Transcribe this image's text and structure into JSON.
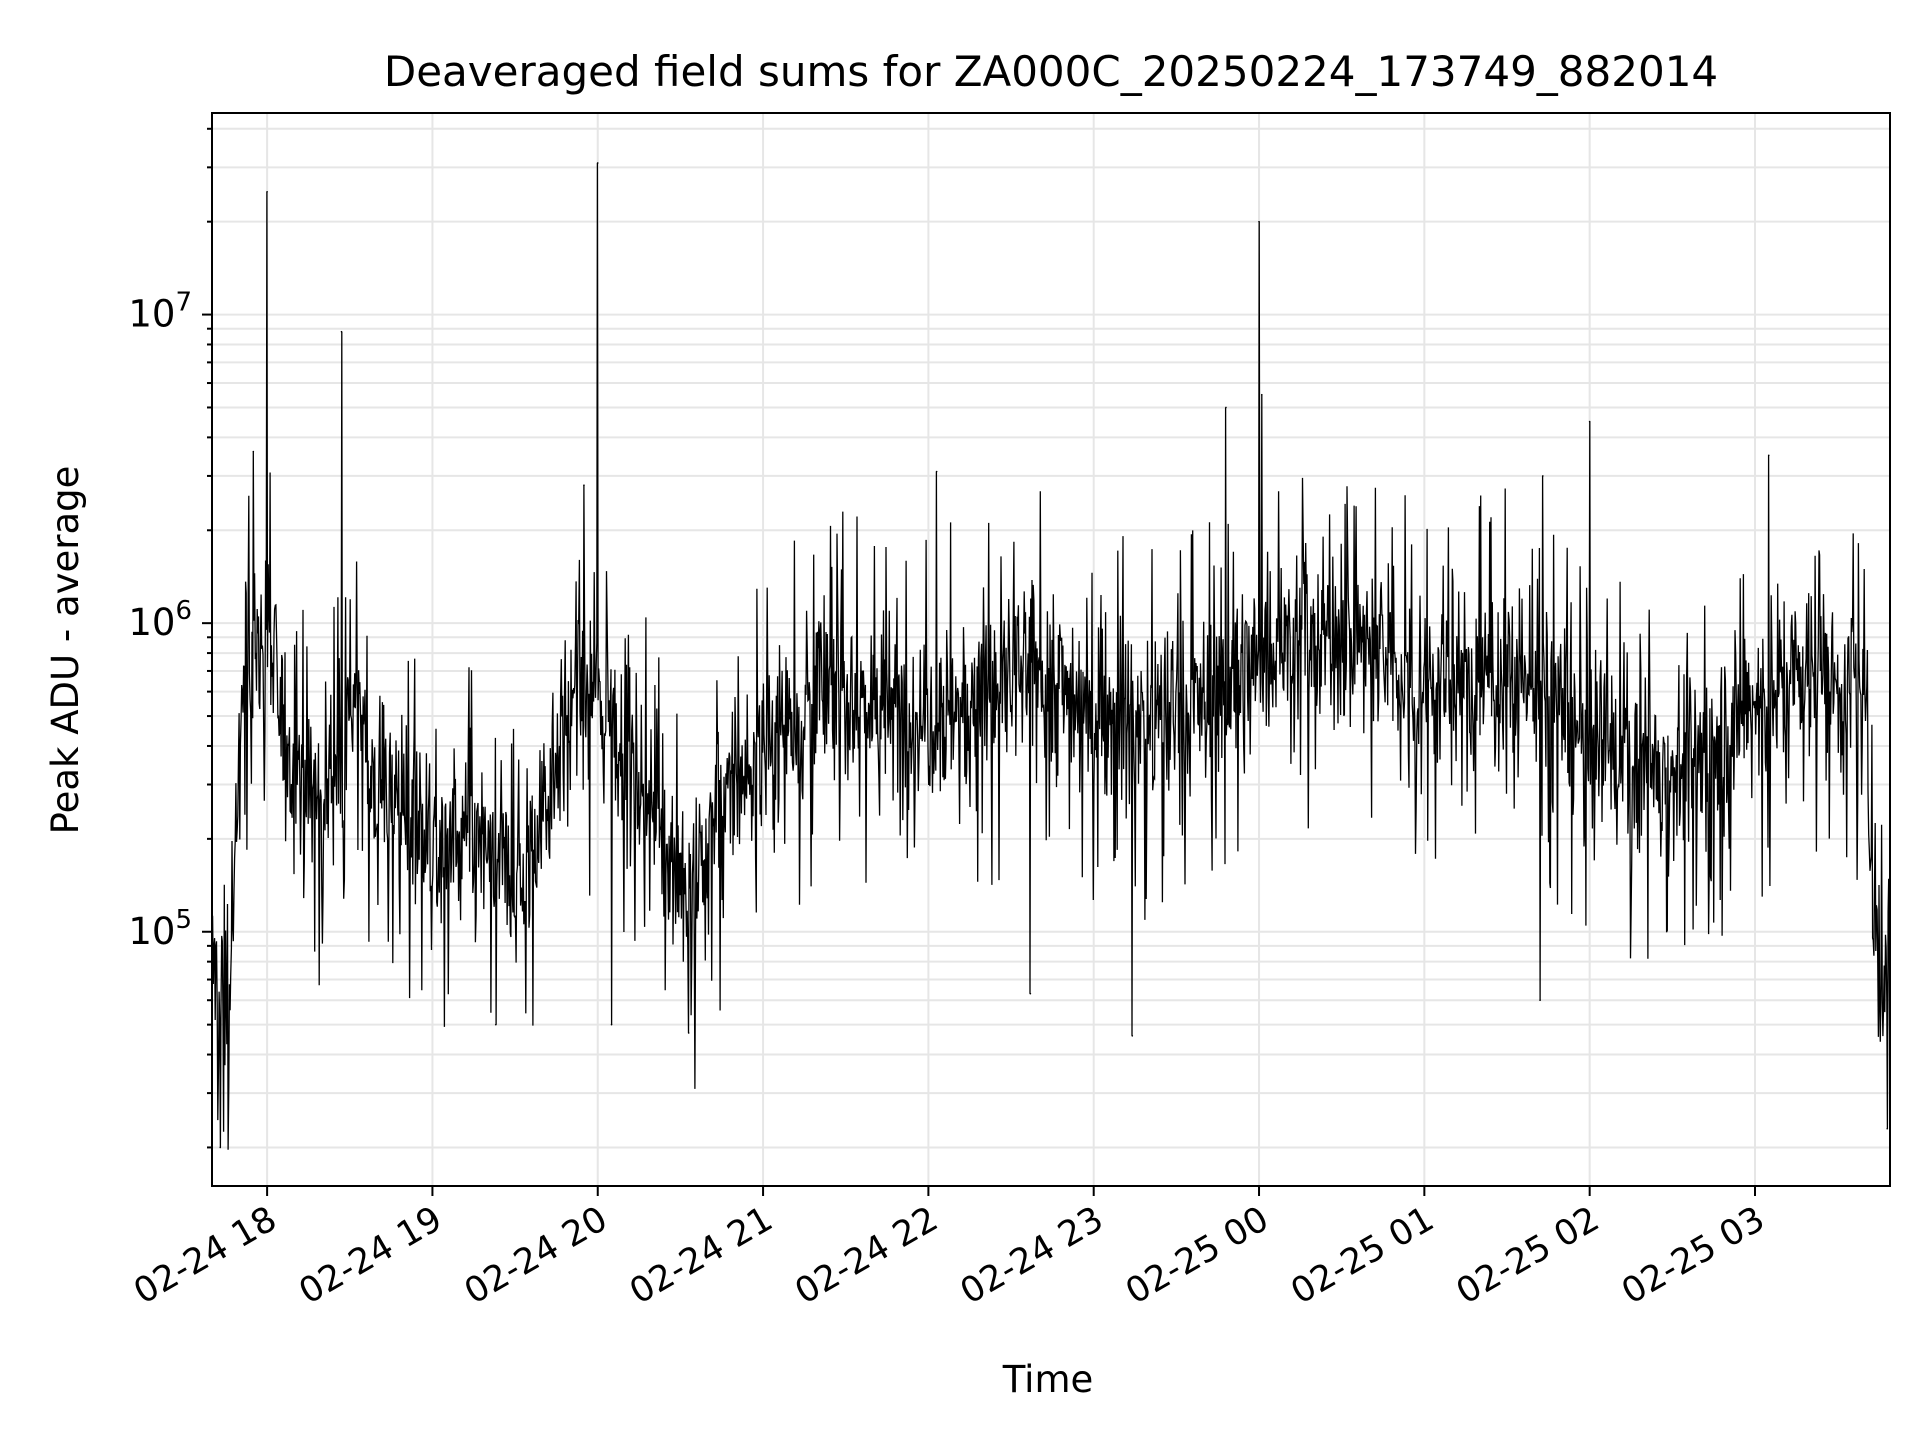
{
  "chart_data": {
    "type": "line",
    "title": "Deaveraged field sums for ZA000C_20250224_173749_882014",
    "xlabel": "Time",
    "ylabel": "Peak ADU - average",
    "yscale": "log",
    "grid": true,
    "legend": "none",
    "xlim": [
      "2025-02-24 17:40",
      "2025-02-25 03:49"
    ],
    "ylim": [
      15000,
      45000000
    ],
    "x_ticks": [
      "02-24 18",
      "02-24 19",
      "02-24 20",
      "02-24 21",
      "02-24 22",
      "02-24 23",
      "02-25 00",
      "02-25 01",
      "02-25 02",
      "02-25 03"
    ],
    "y_ticks": [
      {
        "base": "10",
        "exp": "5"
      },
      {
        "base": "10",
        "exp": "6"
      },
      {
        "base": "10",
        "exp": "7"
      }
    ],
    "colors": {
      "line": "#000000",
      "grid": "#e6e6e6"
    },
    "series": [
      {
        "x": [
          "2025-02-24 17:40",
          "2025-02-24 17:43",
          "2025-02-24 17:47",
          "2025-02-24 17:50",
          "2025-02-24 17:53",
          "2025-02-24 17:56",
          "2025-02-24 17:59",
          "2025-02-24 18:00",
          "2025-02-24 18:02",
          "2025-02-24 18:05",
          "2025-02-24 18:08",
          "2025-02-24 18:11",
          "2025-02-24 18:14",
          "2025-02-24 18:18",
          "2025-02-24 18:21",
          "2025-02-24 18:24",
          "2025-02-24 18:27",
          "2025-02-24 18:30",
          "2025-02-24 18:33",
          "2025-02-24 18:37",
          "2025-02-24 18:40",
          "2025-02-24 18:43",
          "2025-02-24 18:46",
          "2025-02-24 18:50",
          "2025-02-24 18:55",
          "2025-02-24 19:00",
          "2025-02-24 19:05",
          "2025-02-24 19:10",
          "2025-02-24 19:15",
          "2025-02-24 19:20",
          "2025-02-24 19:25",
          "2025-02-24 19:30",
          "2025-02-24 19:35",
          "2025-02-24 19:40",
          "2025-02-24 19:45",
          "2025-02-24 19:50",
          "2025-02-24 19:55",
          "2025-02-24 20:00",
          "2025-02-24 20:05",
          "2025-02-24 20:10",
          "2025-02-24 20:15",
          "2025-02-24 20:20",
          "2025-02-24 20:25",
          "2025-02-24 20:30",
          "2025-02-24 20:35",
          "2025-02-24 20:40",
          "2025-02-24 20:45",
          "2025-02-24 20:50",
          "2025-02-24 20:55",
          "2025-02-24 21:00",
          "2025-02-24 21:10",
          "2025-02-24 21:20",
          "2025-02-24 21:30",
          "2025-02-24 21:40",
          "2025-02-24 21:50",
          "2025-02-24 22:00",
          "2025-02-24 22:05",
          "2025-02-24 22:10",
          "2025-02-24 22:20",
          "2025-02-24 22:30",
          "2025-02-24 22:40",
          "2025-02-24 22:50",
          "2025-02-24 23:00",
          "2025-02-24 23:10",
          "2025-02-24 23:20",
          "2025-02-24 23:30",
          "2025-02-24 23:40",
          "2025-02-24 23:50",
          "2025-02-25 00:00",
          "2025-02-25 00:10",
          "2025-02-25 00:20",
          "2025-02-25 00:30",
          "2025-02-25 00:40",
          "2025-02-25 00:50",
          "2025-02-25 01:00",
          "2025-02-25 01:10",
          "2025-02-25 01:20",
          "2025-02-25 01:30",
          "2025-02-25 01:40",
          "2025-02-25 01:50",
          "2025-02-25 02:00",
          "2025-02-25 02:10",
          "2025-02-25 02:20",
          "2025-02-25 02:30",
          "2025-02-25 02:40",
          "2025-02-25 02:50",
          "2025-02-25 03:00",
          "2025-02-25 03:05",
          "2025-02-25 03:10",
          "2025-02-25 03:15",
          "2025-02-25 03:20",
          "2025-02-25 03:25",
          "2025-02-25 03:30",
          "2025-02-25 03:35",
          "2025-02-25 03:40",
          "2025-02-25 03:43",
          "2025-02-25 03:46",
          "2025-02-25 03:48"
        ],
        "baseline": [
          80000,
          60000,
          70000,
          400000,
          700000,
          800000,
          900000,
          1000000,
          700000,
          500000,
          400000,
          350000,
          300000,
          280000,
          300000,
          350000,
          400000,
          600000,
          450000,
          350000,
          300000,
          300000,
          280000,
          260000,
          230000,
          200000,
          180000,
          200000,
          190000,
          180000,
          150000,
          140000,
          180000,
          250000,
          400000,
          500000,
          550000,
          550000,
          500000,
          400000,
          300000,
          260000,
          200000,
          150000,
          120000,
          200000,
          250000,
          300000,
          330000,
          400000,
          500000,
          600000,
          600000,
          550000,
          500000,
          520000,
          540000,
          550000,
          600000,
          650000,
          700000,
          600000,
          550000,
          500000,
          480000,
          500000,
          550000,
          600000,
          800000,
          900000,
          950000,
          900000,
          850000,
          700000,
          650000,
          600000,
          650000,
          700000,
          650000,
          500000,
          400000,
          380000,
          350000,
          330000,
          350000,
          450000,
          550000,
          600000,
          650000,
          700000,
          750000,
          700000,
          650000,
          600000,
          500000,
          150000,
          60000,
          100000
        ],
        "spikes": [
          {
            "x": "2025-02-24 18:00",
            "y": 25000000
          },
          {
            "x": "2025-02-24 18:27",
            "y": 8800000
          },
          {
            "x": "2025-02-24 17:55",
            "y": 3600000
          },
          {
            "x": "2025-02-24 20:00",
            "y": 31000000
          },
          {
            "x": "2025-02-24 19:55",
            "y": 2800000
          },
          {
            "x": "2025-02-24 22:03",
            "y": 3100000
          },
          {
            "x": "2025-02-24 23:48",
            "y": 5000000
          },
          {
            "x": "2025-02-25 00:00",
            "y": 20000000
          },
          {
            "x": "2025-02-25 00:01",
            "y": 5500000
          },
          {
            "x": "2025-02-25 01:43",
            "y": 3000000
          },
          {
            "x": "2025-02-25 02:00",
            "y": 4500000
          },
          {
            "x": "2025-02-25 03:05",
            "y": 3500000
          }
        ],
        "dips": [
          {
            "x": "2025-02-24 17:43",
            "y": 20000
          },
          {
            "x": "2025-02-24 19:23",
            "y": 50000
          },
          {
            "x": "2025-02-24 20:05",
            "y": 50000
          },
          {
            "x": "2025-02-24 20:33",
            "y": 47000
          },
          {
            "x": "2025-02-24 22:37",
            "y": 63000
          },
          {
            "x": "2025-02-24 23:14",
            "y": 46000
          },
          {
            "x": "2025-02-25 01:42",
            "y": 60000
          },
          {
            "x": "2025-02-25 03:48",
            "y": 23000
          }
        ]
      }
    ]
  }
}
